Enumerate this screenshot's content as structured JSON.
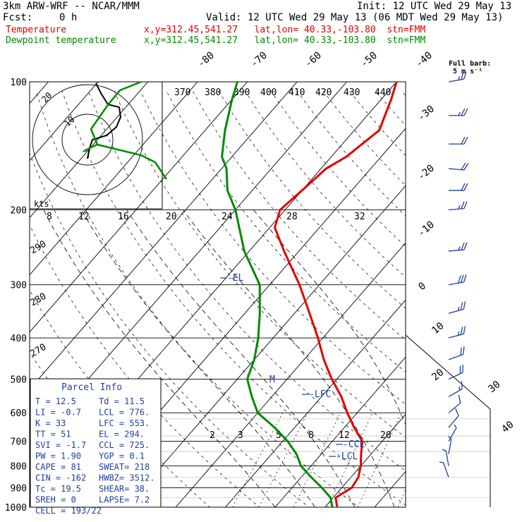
{
  "header": {
    "model": "3km ARW-WRF -- NCAR/MMM",
    "init": "Init: 12 UTC Wed 29 May 13",
    "fcst_label": "Fcst:",
    "fcst_value": "0 h",
    "valid": "Valid: 12 UTC Wed 29 May 13 (06 MDT Wed 29 May 13)",
    "temp_label": "Temperature",
    "temp_loc": "x,y=312.45,541.27   lat,lon= 40.33,-103.80  stn=FMM",
    "dew_label": "Dewpoint temperature",
    "dew_loc": "x,y=312.45,541.27   lat,lon= 40.33,-103.80  stn=FMM"
  },
  "barb_legend": {
    "line1": "Full barb:",
    "line2": "5 m s⁻¹"
  },
  "hodograph": {
    "units": "kts",
    "rings": [
      "10",
      "20"
    ]
  },
  "parcel_info": {
    "title": "Parcel Info",
    "rows": [
      [
        "T   =    12.5",
        "Td  =  11.5"
      ],
      [
        "LI  =   -0.7",
        "LCL =  776."
      ],
      [
        "K   =     33",
        "LFC =  553."
      ],
      [
        "TT  =     51",
        "EL  =  294."
      ],
      [
        "SVI =   -1.7",
        "CCL =  725."
      ],
      [
        "PW  =   1.90",
        "YGP =   0.1"
      ],
      [
        "CAPE =    81",
        "SWEAT=  218"
      ],
      [
        "CIN  =  -162",
        "HWBZ= 3512."
      ],
      [
        "Tc  =   19.5",
        "SHEAR=  38."
      ],
      [
        "SREH =     0",
        "LAPSE=  7.2"
      ],
      [
        "CELL = 193/22",
        ""
      ]
    ]
  },
  "chart_data": {
    "type": "line",
    "title": "",
    "ylabel": "",
    "pressure_levels": [
      "100",
      "200",
      "300",
      "400",
      "500",
      "600",
      "700",
      "800",
      "900",
      "1000"
    ],
    "isotherm_labels": [
      "-80",
      "-70",
      "-60",
      "-50",
      "-40",
      "-30",
      "-20",
      "-10",
      "0",
      "10",
      "20",
      "30",
      "40"
    ],
    "theta_labels_top": [
      "370",
      "380",
      "390",
      "400",
      "410",
      "420",
      "430",
      "440"
    ],
    "theta_labels_left": [
      "290",
      "280",
      "270"
    ],
    "mixing_ratio_labels": [
      "2",
      "3",
      "5",
      "8",
      "12",
      "20"
    ],
    "hodo_speed_labels": [
      "8",
      "12",
      "16",
      "20",
      "24",
      "28",
      "32"
    ],
    "markers": [
      "EL",
      "LFC",
      "CCL",
      "LCL"
    ],
    "series": [
      {
        "name": "Temperature",
        "color": "#e00000",
        "points": [
          [
            1000,
            12.5
          ],
          [
            950,
            10.5
          ],
          [
            900,
            12
          ],
          [
            850,
            11.5
          ],
          [
            800,
            10
          ],
          [
            750,
            8
          ],
          [
            700,
            6
          ],
          [
            650,
            2
          ],
          [
            600,
            -2
          ],
          [
            550,
            -6
          ],
          [
            500,
            -11
          ],
          [
            450,
            -16
          ],
          [
            400,
            -21
          ],
          [
            350,
            -27
          ],
          [
            300,
            -34
          ],
          [
            250,
            -43
          ],
          [
            220,
            -49
          ],
          [
            200,
            -51
          ],
          [
            180,
            -50
          ],
          [
            160,
            -49
          ],
          [
            150,
            -47
          ],
          [
            130,
            -45
          ],
          [
            110,
            -48
          ],
          [
            100,
            -50
          ]
        ]
      },
      {
        "name": "Dewpoint temperature",
        "color": "#008a00",
        "points": [
          [
            1000,
            11.5
          ],
          [
            950,
            9.5
          ],
          [
            900,
            6
          ],
          [
            850,
            2
          ],
          [
            800,
            -2
          ],
          [
            750,
            -5
          ],
          [
            700,
            -9
          ],
          [
            650,
            -14
          ],
          [
            600,
            -20
          ],
          [
            550,
            -24
          ],
          [
            500,
            -28
          ],
          [
            450,
            -30
          ],
          [
            400,
            -33
          ],
          [
            350,
            -37
          ],
          [
            300,
            -42
          ],
          [
            250,
            -51
          ],
          [
            200,
            -60
          ],
          [
            180,
            -65
          ],
          [
            160,
            -69
          ],
          [
            150,
            -72
          ],
          [
            130,
            -76
          ],
          [
            110,
            -80
          ],
          [
            100,
            -82
          ]
        ]
      }
    ],
    "wind_barbs_kts": [
      [
        100,
        25,
        260
      ],
      [
        120,
        25,
        270
      ],
      [
        140,
        22,
        270
      ],
      [
        160,
        20,
        275
      ],
      [
        180,
        22,
        270
      ],
      [
        200,
        25,
        265
      ],
      [
        250,
        28,
        265
      ],
      [
        300,
        30,
        260
      ],
      [
        350,
        28,
        255
      ],
      [
        400,
        25,
        255
      ],
      [
        450,
        22,
        250
      ],
      [
        500,
        20,
        245
      ],
      [
        550,
        15,
        240
      ],
      [
        600,
        12,
        230
      ],
      [
        650,
        10,
        220
      ],
      [
        700,
        8,
        210
      ],
      [
        750,
        6,
        190
      ],
      [
        800,
        5,
        170
      ],
      [
        850,
        5,
        160
      ]
    ]
  }
}
